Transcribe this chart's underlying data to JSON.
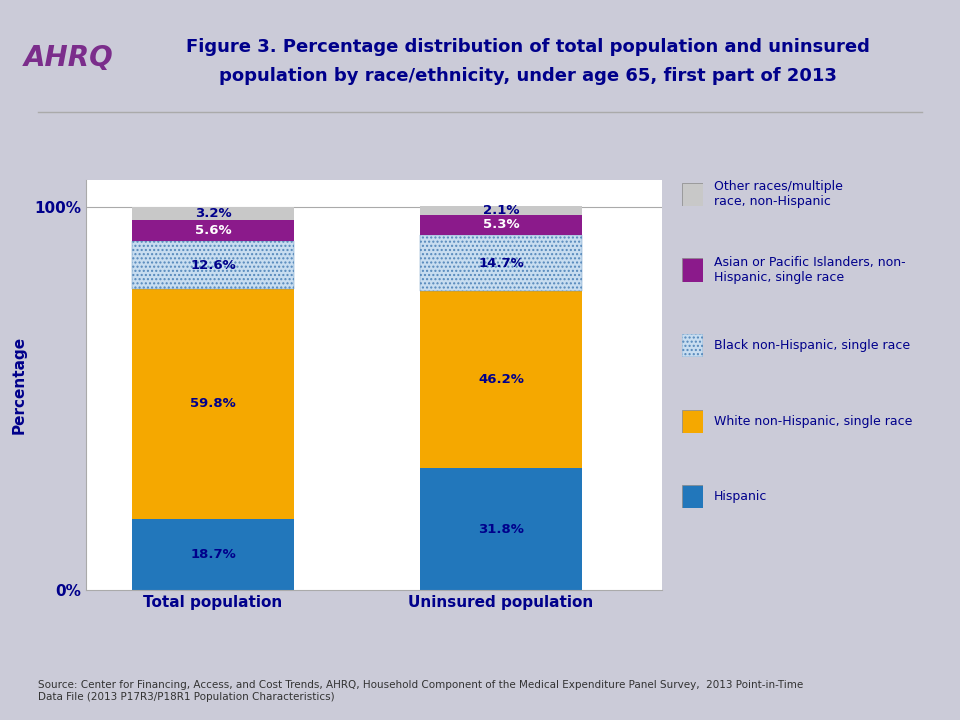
{
  "title_line1": "Figure 3. Percentage distribution of total population and uninsured",
  "title_line2": "population by race/ethnicity, under age 65, first part of 2013",
  "categories": [
    "Total population",
    "Uninsured population"
  ],
  "segments": [
    {
      "label": "Hispanic",
      "values": [
        18.7,
        31.8
      ],
      "color": "#2277BB"
    },
    {
      "label": "White non-Hispanic, single race",
      "values": [
        59.8,
        46.2
      ],
      "color": "#F5A800"
    },
    {
      "label": "Black non-Hispanic, single race",
      "values": [
        12.6,
        14.7
      ],
      "color": "#C8DDF0",
      "hatch": "...."
    },
    {
      "label": "Asian or Pacific Islanders, non-\nHispanic, single race",
      "values": [
        5.6,
        5.3
      ],
      "color": "#8B1A8B"
    },
    {
      "label": "Other races/multiple\nrace, non-Hispanic",
      "values": [
        3.2,
        2.1
      ],
      "color": "#C8C8C8"
    }
  ],
  "ylabel": "Percentage",
  "source_text": "Source: Center for Financing, Access, and Cost Trends, AHRQ, Household Component of the Medical Expenditure Panel Survey,  2013 Point-in-Time\nData File (2013 P17R3/P18R1 Population Characteristics)",
  "title_color": "#00008B",
  "label_color": "#00008B",
  "ylabel_color": "#00008B",
  "bg_color_top": "#D0D0DC",
  "bg_color_bottom": "#FFFFFF",
  "plot_bg": "#FFFFFF",
  "hatch_edge_color": "#5588BB",
  "bar_width": 0.28
}
